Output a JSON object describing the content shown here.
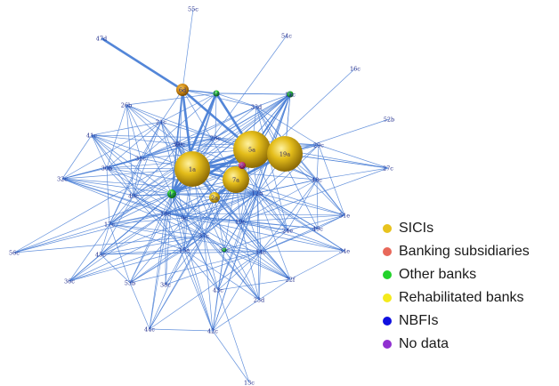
{
  "legend": {
    "items": [
      {
        "label": "SICIs",
        "color": "#e8c31e"
      },
      {
        "label": "Banking subsidiaries",
        "color": "#e8685a"
      },
      {
        "label": "Other banks",
        "color": "#22d22a"
      },
      {
        "label": "Rehabilitated banks",
        "color": "#f4ea1c"
      },
      {
        "label": "NBFIs",
        "color": "#1010e0"
      },
      {
        "label": "No data",
        "color": "#9030d0"
      }
    ]
  },
  "network": {
    "nodes": [
      {
        "id": "1a",
        "type": "SICIs",
        "size": "large"
      },
      {
        "id": "5a",
        "type": "SICIs",
        "size": "large"
      },
      {
        "id": "19a",
        "type": "SICIs",
        "size": "large"
      },
      {
        "id": "7a",
        "type": "SICIs",
        "size": "medium"
      },
      {
        "id": "2a",
        "type": "SICIs",
        "size": "small"
      },
      {
        "id": "6d",
        "type": "SICIs",
        "size": "small"
      },
      {
        "id": "8",
        "type": "Banking subsidiaries",
        "size": "small"
      },
      {
        "id": "4c",
        "type": "Other banks",
        "size": "small"
      },
      {
        "id": "1c",
        "type": "Other banks",
        "size": "small"
      },
      {
        "id": "3c",
        "type": "Other banks",
        "size": "small"
      },
      {
        "id": "55c"
      },
      {
        "id": "47d"
      },
      {
        "id": "54c"
      },
      {
        "id": "16c"
      },
      {
        "id": "52b"
      },
      {
        "id": "26b"
      },
      {
        "id": "21c"
      },
      {
        "id": "33d"
      },
      {
        "id": "41c"
      },
      {
        "id": "28c"
      },
      {
        "id": "29c"
      },
      {
        "id": "27c"
      },
      {
        "id": "30b"
      },
      {
        "id": "32c"
      },
      {
        "id": "48c"
      },
      {
        "id": "4e"
      },
      {
        "id": "12b"
      },
      {
        "id": "51e"
      },
      {
        "id": "17c"
      },
      {
        "id": "10c"
      },
      {
        "id": "9c"
      },
      {
        "id": "56c"
      },
      {
        "id": "45c"
      },
      {
        "id": "15e"
      },
      {
        "id": "35c"
      },
      {
        "id": "34e"
      },
      {
        "id": "36c"
      },
      {
        "id": "53b"
      },
      {
        "id": "38c"
      },
      {
        "id": "43c"
      },
      {
        "id": "22f"
      },
      {
        "id": "23d"
      },
      {
        "id": "44c"
      },
      {
        "id": "42c"
      },
      {
        "id": "13c"
      },
      {
        "id": "24e"
      },
      {
        "id": "49c"
      },
      {
        "id": "18c"
      },
      {
        "id": "37c"
      },
      {
        "id": "11c"
      },
      {
        "id": "20c"
      },
      {
        "id": "39"
      },
      {
        "id": "31c"
      },
      {
        "id": "14c"
      },
      {
        "id": "40c"
      }
    ],
    "edges": [
      [
        "47d",
        "6d"
      ],
      [
        "55c",
        "6d"
      ],
      [
        "54c",
        "4c"
      ],
      [
        "16c",
        "7a"
      ],
      [
        "52b",
        "19a"
      ],
      [
        "6d",
        "1a"
      ],
      [
        "6d",
        "4c"
      ],
      [
        "6d",
        "1c"
      ],
      [
        "6d",
        "5a"
      ],
      [
        "6d",
        "33d"
      ],
      [
        "6d",
        "21c"
      ],
      [
        "6d",
        "39"
      ],
      [
        "6d",
        "7a"
      ],
      [
        "6d",
        "20c"
      ],
      [
        "1c",
        "5a"
      ],
      [
        "1c",
        "3c"
      ],
      [
        "1c",
        "1a"
      ],
      [
        "1c",
        "33d"
      ],
      [
        "1c",
        "28c"
      ],
      [
        "1c",
        "11c"
      ],
      [
        "1c",
        "31c"
      ],
      [
        "1c",
        "26b"
      ],
      [
        "1c",
        "21c"
      ],
      [
        "3c",
        "5a"
      ],
      [
        "3c",
        "19a"
      ],
      [
        "3c",
        "33d"
      ],
      [
        "3c",
        "11c"
      ],
      [
        "3c",
        "12b"
      ],
      [
        "3c",
        "28c"
      ],
      [
        "1a",
        "5a"
      ],
      [
        "1a",
        "19a"
      ],
      [
        "1a",
        "7a"
      ],
      [
        "1a",
        "8"
      ],
      [
        "1a",
        "2a"
      ],
      [
        "1a",
        "4c"
      ],
      [
        "1a",
        "21c"
      ],
      [
        "1a",
        "26b"
      ],
      [
        "1a",
        "41c"
      ],
      [
        "1a",
        "30b"
      ],
      [
        "1a",
        "32c"
      ],
      [
        "1a",
        "12b"
      ],
      [
        "1a",
        "11c"
      ],
      [
        "1a",
        "20c"
      ],
      [
        "1a",
        "40c"
      ],
      [
        "1a",
        "17c"
      ],
      [
        "1a",
        "9c"
      ],
      [
        "1a",
        "29c"
      ],
      [
        "1a",
        "37c"
      ],
      [
        "1a",
        "28c"
      ],
      [
        "1a",
        "48c"
      ],
      [
        "1a",
        "31c"
      ],
      [
        "1a",
        "39"
      ],
      [
        "1a",
        "18c"
      ],
      [
        "1a",
        "15e"
      ],
      [
        "1a",
        "10c"
      ],
      [
        "1a",
        "14c"
      ],
      [
        "5a",
        "19a"
      ],
      [
        "5a",
        "7a"
      ],
      [
        "5a",
        "8"
      ],
      [
        "5a",
        "2a"
      ],
      [
        "5a",
        "4c"
      ],
      [
        "5a",
        "33d"
      ],
      [
        "5a",
        "29c"
      ],
      [
        "5a",
        "27c"
      ],
      [
        "5a",
        "48c"
      ],
      [
        "5a",
        "12b"
      ],
      [
        "5a",
        "28c"
      ],
      [
        "5a",
        "20c"
      ],
      [
        "5a",
        "37c"
      ],
      [
        "5a",
        "10c"
      ],
      [
        "5a",
        "11c"
      ],
      [
        "5a",
        "24e"
      ],
      [
        "5a",
        "21c"
      ],
      [
        "5a",
        "31c"
      ],
      [
        "19a",
        "7a"
      ],
      [
        "19a",
        "8"
      ],
      [
        "19a",
        "4c"
      ],
      [
        "19a",
        "27c"
      ],
      [
        "19a",
        "29c"
      ],
      [
        "19a",
        "48c"
      ],
      [
        "19a",
        "12b"
      ],
      [
        "19a",
        "33d"
      ],
      [
        "19a",
        "11c"
      ],
      [
        "19a",
        "51e"
      ],
      [
        "19a",
        "2a"
      ],
      [
        "19a",
        "30b"
      ],
      [
        "7a",
        "4c"
      ],
      [
        "7a",
        "8"
      ],
      [
        "7a",
        "2a"
      ],
      [
        "7a",
        "12b"
      ],
      [
        "7a",
        "51e"
      ],
      [
        "7a",
        "49c"
      ],
      [
        "7a",
        "24e"
      ],
      [
        "7a",
        "10c"
      ],
      [
        "7a",
        "37c"
      ],
      [
        "7a",
        "18c"
      ],
      [
        "7a",
        "15e"
      ],
      [
        "7a",
        "9c"
      ],
      [
        "7a",
        "35c"
      ],
      [
        "7a",
        "14c"
      ],
      [
        "4c",
        "2a"
      ],
      [
        "4c",
        "8"
      ],
      [
        "4c",
        "37c"
      ],
      [
        "4c",
        "11c"
      ],
      [
        "4c",
        "20c"
      ],
      [
        "4c",
        "40c"
      ],
      [
        "4c",
        "12b"
      ],
      [
        "4c",
        "32c"
      ],
      [
        "4c",
        "17c"
      ],
      [
        "4c",
        "56c"
      ],
      [
        "4c",
        "45c"
      ],
      [
        "4c",
        "36c"
      ],
      [
        "4c",
        "53b"
      ],
      [
        "4c",
        "38c"
      ],
      [
        "4c",
        "43c"
      ],
      [
        "4c",
        "22f"
      ],
      [
        "4c",
        "23d"
      ],
      [
        "4c",
        "44c"
      ],
      [
        "4c",
        "42c"
      ],
      [
        "4c",
        "41c"
      ],
      [
        "4c",
        "30b"
      ],
      [
        "4c",
        "9c"
      ],
      [
        "4c",
        "18c"
      ],
      [
        "4c",
        "15e"
      ],
      [
        "4c",
        "14c"
      ],
      [
        "4c",
        "3c"
      ],
      [
        "4c",
        "1c"
      ],
      [
        "4c",
        "5a"
      ],
      [
        "2a",
        "12b"
      ],
      [
        "2a",
        "20c"
      ],
      [
        "2a",
        "37c"
      ],
      [
        "2a",
        "15e"
      ],
      [
        "2a",
        "35c"
      ],
      [
        "2a",
        "18c"
      ],
      [
        "2a",
        "14c"
      ],
      [
        "2a",
        "22f"
      ],
      [
        "8",
        "12b"
      ],
      [
        "8",
        "24e"
      ],
      [
        "8",
        "20c"
      ],
      [
        "11c",
        "40c"
      ],
      [
        "11c",
        "9c"
      ],
      [
        "11c",
        "10c"
      ],
      [
        "11c",
        "37c"
      ],
      [
        "11c",
        "53b"
      ],
      [
        "11c",
        "43c"
      ],
      [
        "11c",
        "15e"
      ],
      [
        "11c",
        "44c"
      ],
      [
        "11c",
        "42c"
      ],
      [
        "11c",
        "12b"
      ],
      [
        "11c",
        "56c"
      ],
      [
        "11c",
        "36c"
      ],
      [
        "11c",
        "17c"
      ],
      [
        "12b",
        "48c"
      ],
      [
        "12b",
        "49c"
      ],
      [
        "12b",
        "51e"
      ],
      [
        "12b",
        "24e"
      ],
      [
        "12b",
        "35c"
      ],
      [
        "12b",
        "10c"
      ],
      [
        "12b",
        "40c"
      ],
      [
        "12b",
        "37c"
      ],
      [
        "12b",
        "20c"
      ],
      [
        "12b",
        "29c"
      ],
      [
        "12b",
        "9c"
      ],
      [
        "12b",
        "18c"
      ],
      [
        "12b",
        "14c"
      ],
      [
        "12b",
        "15e"
      ],
      [
        "12b",
        "32c"
      ],
      [
        "12b",
        "30b"
      ],
      [
        "12b",
        "34e"
      ],
      [
        "12b",
        "22f"
      ],
      [
        "12b",
        "23d"
      ],
      [
        "12b",
        "45c"
      ],
      [
        "12b",
        "43c"
      ],
      [
        "12b",
        "17c"
      ],
      [
        "12b",
        "42c"
      ],
      [
        "12b",
        "53b"
      ],
      [
        "12b",
        "36c"
      ],
      [
        "40c",
        "30b"
      ],
      [
        "40c",
        "41c"
      ],
      [
        "40c",
        "26b"
      ],
      [
        "40c",
        "32c"
      ],
      [
        "40c",
        "20c"
      ],
      [
        "40c",
        "37c"
      ],
      [
        "40c",
        "21c"
      ],
      [
        "40c",
        "31c"
      ],
      [
        "40c",
        "17c"
      ],
      [
        "40c",
        "45c"
      ],
      [
        "40c",
        "9c"
      ],
      [
        "40c",
        "28c"
      ],
      [
        "40c",
        "18c"
      ],
      [
        "40c",
        "15e"
      ],
      [
        "14c",
        "42c"
      ],
      [
        "14c",
        "44c"
      ],
      [
        "14c",
        "43c"
      ],
      [
        "14c",
        "23d"
      ],
      [
        "14c",
        "38c"
      ],
      [
        "14c",
        "53b"
      ],
      [
        "14c",
        "45c"
      ],
      [
        "14c",
        "17c"
      ],
      [
        "14c",
        "22f"
      ],
      [
        "14c",
        "35c"
      ],
      [
        "14c",
        "34e"
      ],
      [
        "14c",
        "24e"
      ],
      [
        "14c",
        "49c"
      ],
      [
        "14c",
        "48c"
      ],
      [
        "14c",
        "51e"
      ],
      [
        "15e",
        "45c"
      ],
      [
        "15e",
        "42c"
      ],
      [
        "15e",
        "44c"
      ],
      [
        "15e",
        "43c"
      ],
      [
        "15e",
        "38c"
      ],
      [
        "15e",
        "53b"
      ],
      [
        "15e",
        "23d"
      ],
      [
        "15e",
        "36c"
      ],
      [
        "15e",
        "17c"
      ],
      [
        "15e",
        "35c"
      ],
      [
        "15e",
        "37c"
      ],
      [
        "15e",
        "41c"
      ],
      [
        "15e",
        "9c"
      ],
      [
        "18c",
        "45c"
      ],
      [
        "18c",
        "53b"
      ],
      [
        "18c",
        "36c"
      ],
      [
        "18c",
        "42c"
      ],
      [
        "18c",
        "44c"
      ],
      [
        "18c",
        "38c"
      ],
      [
        "18c",
        "17c"
      ],
      [
        "18c",
        "56c"
      ],
      [
        "18c",
        "10c"
      ],
      [
        "18c",
        "49c"
      ],
      [
        "18c",
        "34e"
      ],
      [
        "18c",
        "51e"
      ],
      [
        "18c",
        "24e"
      ],
      [
        "18c",
        "48c"
      ],
      [
        "18c",
        "32c"
      ],
      [
        "18c",
        "28c"
      ],
      [
        "9c",
        "41c"
      ],
      [
        "9c",
        "30b"
      ],
      [
        "9c",
        "26b"
      ],
      [
        "9c",
        "21c"
      ],
      [
        "9c",
        "17c"
      ],
      [
        "9c",
        "32c"
      ],
      [
        "9c",
        "10c"
      ],
      [
        "9c",
        "35c"
      ],
      [
        "9c",
        "22f"
      ],
      [
        "9c",
        "43c"
      ],
      [
        "10c",
        "51e"
      ],
      [
        "10c",
        "48c"
      ],
      [
        "10c",
        "49c"
      ],
      [
        "10c",
        "24e"
      ],
      [
        "10c",
        "22f"
      ],
      [
        "10c",
        "23d"
      ],
      [
        "10c",
        "34e"
      ],
      [
        "10c",
        "35c"
      ],
      [
        "10c",
        "39"
      ],
      [
        "10c",
        "29c"
      ],
      [
        "10c",
        "27c"
      ],
      [
        "35c",
        "22f"
      ],
      [
        "35c",
        "43c"
      ],
      [
        "35c",
        "42c"
      ],
      [
        "35c",
        "23d"
      ],
      [
        "35c",
        "39"
      ],
      [
        "35c",
        "24e"
      ],
      [
        "39",
        "22f"
      ],
      [
        "39",
        "34e"
      ],
      [
        "39",
        "23d"
      ],
      [
        "39",
        "49c"
      ],
      [
        "20c",
        "31c"
      ],
      [
        "20c",
        "21c"
      ],
      [
        "20c",
        "28c"
      ],
      [
        "20c",
        "33d"
      ],
      [
        "20c",
        "26b"
      ],
      [
        "20c",
        "41c"
      ],
      [
        "20c",
        "30b"
      ],
      [
        "20c",
        "29c"
      ],
      [
        "28c",
        "29c"
      ],
      [
        "28c",
        "27c"
      ],
      [
        "28c",
        "48c"
      ],
      [
        "28c",
        "33d"
      ],
      [
        "28c",
        "26b"
      ],
      [
        "28c",
        "41c"
      ],
      [
        "28c",
        "30b"
      ],
      [
        "28c",
        "32c"
      ],
      [
        "28c",
        "17c"
      ],
      [
        "31c",
        "26b"
      ],
      [
        "31c",
        "41c"
      ],
      [
        "31c",
        "21c"
      ],
      [
        "31c",
        "33d"
      ],
      [
        "31c",
        "30b"
      ],
      [
        "31c",
        "32c"
      ],
      [
        "31c",
        "17c"
      ],
      [
        "21c",
        "41c"
      ],
      [
        "21c",
        "30b"
      ],
      [
        "21c",
        "26b"
      ],
      [
        "21c",
        "32c"
      ],
      [
        "21c",
        "37c"
      ],
      [
        "21c",
        "17c"
      ],
      [
        "41c",
        "30b"
      ],
      [
        "41c",
        "32c"
      ],
      [
        "30b",
        "32c"
      ],
      [
        "30b",
        "17c"
      ],
      [
        "26b",
        "30b"
      ],
      [
        "33d",
        "29c"
      ],
      [
        "33d",
        "48c"
      ],
      [
        "33d",
        "24e"
      ],
      [
        "33d",
        "49c"
      ],
      [
        "33d",
        "51e"
      ],
      [
        "29c",
        "48c"
      ],
      [
        "29c",
        "27c"
      ],
      [
        "29c",
        "51e"
      ],
      [
        "48c",
        "51e"
      ],
      [
        "48c",
        "24e"
      ],
      [
        "48c",
        "49c"
      ],
      [
        "48c",
        "27c"
      ],
      [
        "49c",
        "51e"
      ],
      [
        "24e",
        "51e"
      ],
      [
        "24e",
        "34e"
      ],
      [
        "37c",
        "45c"
      ],
      [
        "37c",
        "36c"
      ],
      [
        "37c",
        "56c"
      ],
      [
        "37c",
        "32c"
      ],
      [
        "37c",
        "17c"
      ],
      [
        "37c",
        "53b"
      ],
      [
        "37c",
        "44c"
      ],
      [
        "37c",
        "43c"
      ],
      [
        "37c",
        "38c"
      ],
      [
        "37c",
        "42c"
      ],
      [
        "37c",
        "23d"
      ],
      [
        "37c",
        "22f"
      ],
      [
        "37c",
        "35c"
      ],
      [
        "17c",
        "56c"
      ],
      [
        "17c",
        "45c"
      ],
      [
        "17c",
        "36c"
      ],
      [
        "17c",
        "53b"
      ],
      [
        "45c",
        "36c"
      ],
      [
        "45c",
        "53b"
      ],
      [
        "53b",
        "44c"
      ],
      [
        "44c",
        "42c"
      ],
      [
        "42c",
        "43c"
      ],
      [
        "42c",
        "23d"
      ],
      [
        "42c",
        "13c"
      ],
      [
        "43c",
        "22f"
      ],
      [
        "43c",
        "13c"
      ],
      [
        "23d",
        "22f"
      ],
      [
        "22f",
        "34e"
      ]
    ]
  }
}
